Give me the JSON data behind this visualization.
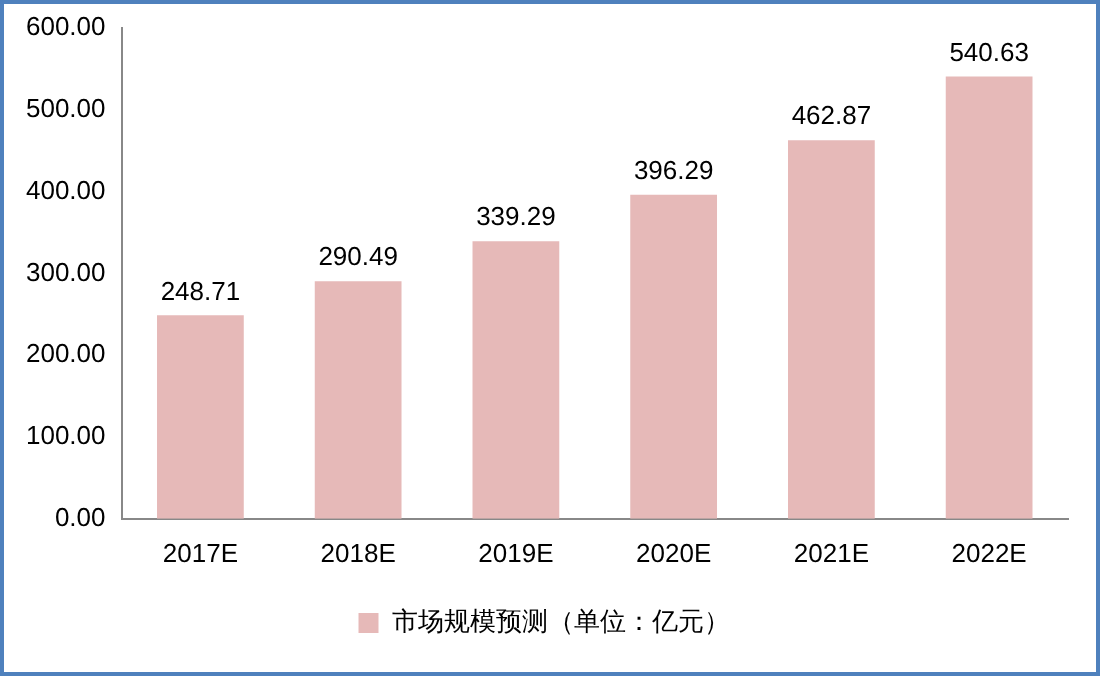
{
  "chart_data": {
    "type": "bar",
    "categories": [
      "2017E",
      "2018E",
      "2019E",
      "2020E",
      "2021E",
      "2022E"
    ],
    "series": [
      {
        "name": "市场规模预测（单位：亿元）",
        "color": "#e6b9b8",
        "values": [
          248.71,
          290.49,
          339.29,
          396.29,
          462.87,
          540.63
        ]
      }
    ],
    "ylim": [
      0,
      600
    ],
    "yticks": [
      {
        "value": 0,
        "label": "0.00"
      },
      {
        "value": 100,
        "label": "100.00"
      },
      {
        "value": 200,
        "label": "200.00"
      },
      {
        "value": 300,
        "label": "300.00"
      },
      {
        "value": 400,
        "label": "400.00"
      },
      {
        "value": 500,
        "label": "500.00"
      },
      {
        "value": 600,
        "label": "600.00"
      }
    ],
    "grid": false,
    "legend": "bottom",
    "data_labels": true
  }
}
